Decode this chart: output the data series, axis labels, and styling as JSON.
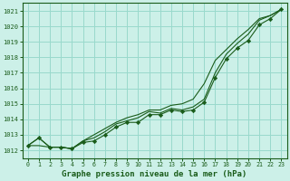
{
  "title": "Graphe pression niveau de la mer (hPa)",
  "background_color": "#ccf0e8",
  "plot_bg_color": "#ccf0e8",
  "grid_color": "#99d9cc",
  "line_color": "#1a5c1a",
  "marker_color": "#1a5c1a",
  "text_color": "#1a5c1a",
  "border_color": "#1a5c1a",
  "xlim": [
    -0.5,
    23.5
  ],
  "ylim": [
    1011.5,
    1021.5
  ],
  "yticks": [
    1012,
    1013,
    1014,
    1015,
    1016,
    1017,
    1018,
    1019,
    1020,
    1021
  ],
  "xticks": [
    0,
    1,
    2,
    3,
    4,
    5,
    6,
    7,
    8,
    9,
    10,
    11,
    12,
    13,
    14,
    15,
    16,
    17,
    18,
    19,
    20,
    21,
    22,
    23
  ],
  "series1_x": [
    0,
    1,
    2,
    3,
    4,
    5,
    6,
    7,
    8,
    9,
    10,
    11,
    12,
    13,
    14,
    15,
    16,
    17,
    18,
    19,
    20,
    21,
    22,
    23
  ],
  "series1_y": [
    1012.3,
    1012.8,
    1012.2,
    1012.2,
    1012.1,
    1012.5,
    1012.6,
    1013.0,
    1013.5,
    1013.8,
    1013.8,
    1014.3,
    1014.3,
    1014.6,
    1014.5,
    1014.6,
    1015.1,
    1016.7,
    1017.9,
    1018.6,
    1019.1,
    1020.1,
    1020.5,
    1021.1
  ],
  "series2_x": [
    0,
    1,
    2,
    3,
    4,
    5,
    6,
    7,
    8,
    9,
    10,
    11,
    12,
    13,
    14,
    15,
    16,
    17,
    18,
    19,
    20,
    21,
    22,
    23
  ],
  "series2_y": [
    1012.3,
    1012.8,
    1012.2,
    1012.2,
    1012.1,
    1012.6,
    1012.8,
    1013.2,
    1013.7,
    1013.9,
    1014.1,
    1014.5,
    1014.4,
    1014.7,
    1014.6,
    1014.8,
    1015.3,
    1017.0,
    1018.2,
    1018.9,
    1019.5,
    1020.4,
    1020.7,
    1021.1
  ],
  "series3_x": [
    0,
    1,
    2,
    3,
    4,
    5,
    6,
    7,
    8,
    9,
    10,
    11,
    12,
    13,
    14,
    15,
    16,
    17,
    18,
    19,
    20,
    21,
    22,
    23
  ],
  "series3_y": [
    1012.3,
    1012.3,
    1012.2,
    1012.2,
    1012.1,
    1012.6,
    1013.0,
    1013.4,
    1013.8,
    1014.1,
    1014.3,
    1014.6,
    1014.6,
    1014.9,
    1015.0,
    1015.3,
    1016.3,
    1017.8,
    1018.5,
    1019.2,
    1019.8,
    1020.5,
    1020.7,
    1021.1
  ]
}
